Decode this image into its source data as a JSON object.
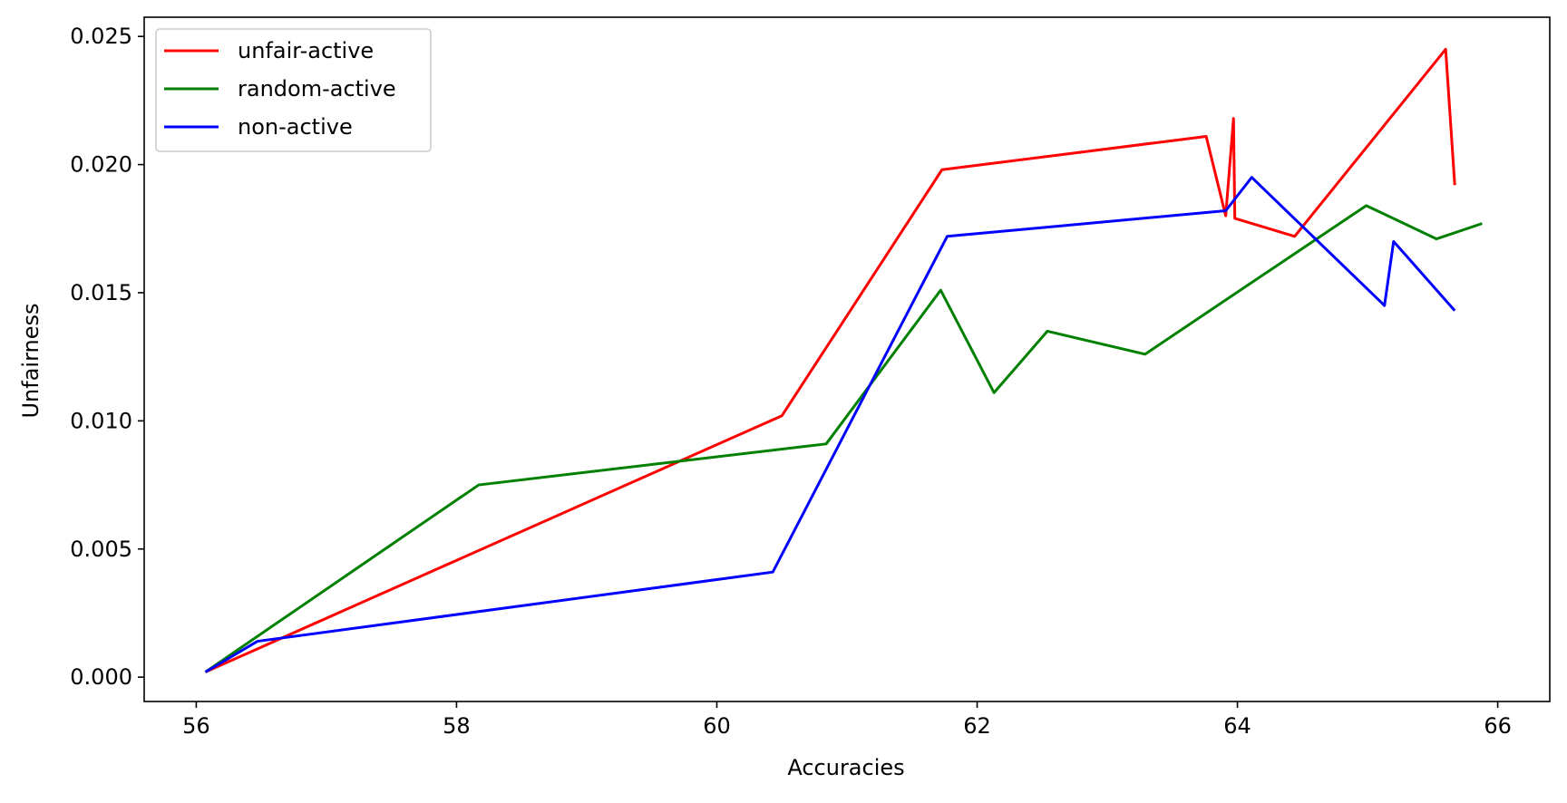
{
  "chart_data": {
    "type": "line",
    "title": "",
    "xlabel": "Accuracies",
    "ylabel": "Unfairness",
    "xlim": [
      55.6,
      66.4
    ],
    "ylim": [
      -0.00095,
      0.02575
    ],
    "xticks": [
      56,
      58,
      60,
      62,
      64,
      66
    ],
    "xtick_labels": [
      "56",
      "58",
      "60",
      "62",
      "64",
      "66"
    ],
    "yticks": [
      0.0,
      0.005,
      0.01,
      0.015,
      0.02,
      0.025
    ],
    "ytick_labels": [
      "0.000",
      "0.005",
      "0.010",
      "0.015",
      "0.020",
      "0.025"
    ],
    "grid": false,
    "legend_position": "top-left",
    "series": [
      {
        "name": "unfair-active",
        "color": "#ff0000",
        "points": [
          [
            56.07,
            0.0002
          ],
          [
            60.5,
            0.0102
          ],
          [
            61.73,
            0.0198
          ],
          [
            63.76,
            0.0211
          ],
          [
            63.91,
            0.018
          ],
          [
            63.97,
            0.0218
          ],
          [
            63.98,
            0.0179
          ],
          [
            64.44,
            0.0172
          ],
          [
            65.6,
            0.0245
          ],
          [
            65.67,
            0.0192
          ]
        ]
      },
      {
        "name": "random-active",
        "color": "#008000",
        "points": [
          [
            56.07,
            0.0002
          ],
          [
            58.17,
            0.0075
          ],
          [
            60.84,
            0.0091
          ],
          [
            61.72,
            0.0151
          ],
          [
            62.13,
            0.0111
          ],
          [
            62.54,
            0.0135
          ],
          [
            63.29,
            0.0126
          ],
          [
            64.99,
            0.0184
          ],
          [
            65.53,
            0.0171
          ],
          [
            65.88,
            0.0177
          ]
        ]
      },
      {
        "name": "non-active",
        "color": "#0000ff",
        "points": [
          [
            56.07,
            0.0002
          ],
          [
            56.47,
            0.0014
          ],
          [
            60.43,
            0.0041
          ],
          [
            61.77,
            0.0172
          ],
          [
            63.91,
            0.0182
          ],
          [
            64.11,
            0.0195
          ],
          [
            65.13,
            0.0145
          ],
          [
            65.2,
            0.017
          ],
          [
            65.67,
            0.0143
          ]
        ]
      }
    ]
  }
}
